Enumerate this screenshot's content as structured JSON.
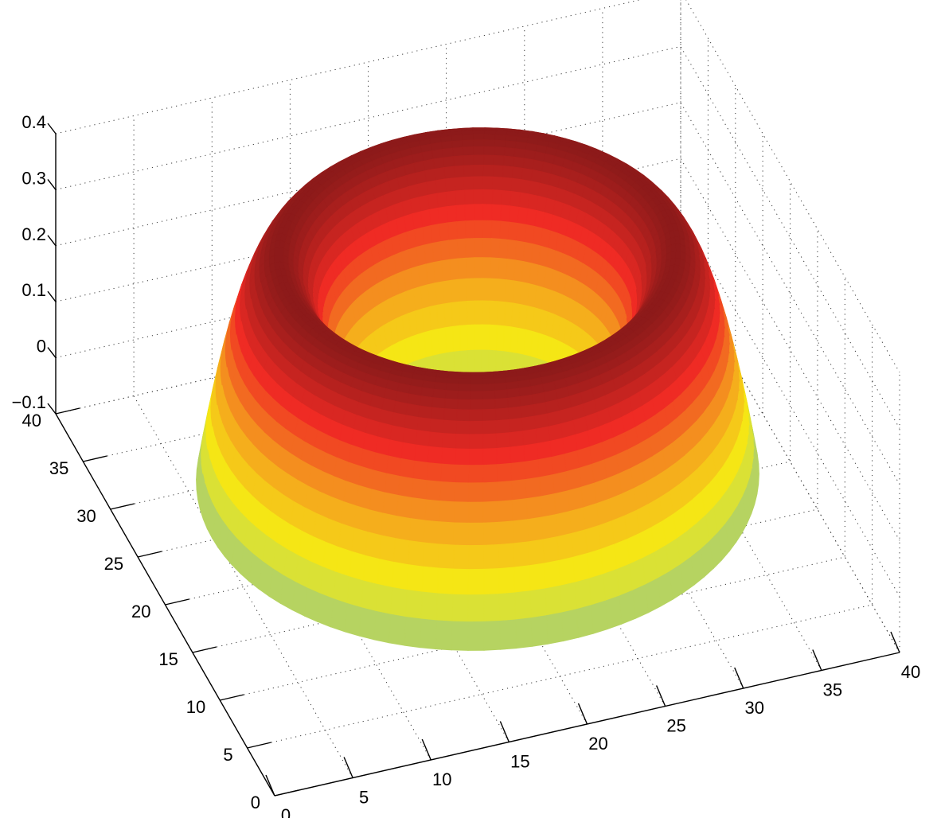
{
  "chart_data": {
    "type": "surface3d",
    "title": "",
    "xlabel": "",
    "ylabel": "",
    "zlabel": "",
    "xlim": [
      0,
      40
    ],
    "ylim": [
      0,
      40
    ],
    "zlim": [
      -0.1,
      0.4
    ],
    "x_ticks": [
      "0",
      "5",
      "10",
      "15",
      "20",
      "25",
      "30",
      "35",
      "40"
    ],
    "y_ticks": [
      "0",
      "5",
      "10",
      "15",
      "20",
      "25",
      "30",
      "35",
      "40"
    ],
    "z_ticks": [
      "−0.1",
      "0",
      "0.1",
      "0.2",
      "0.3",
      "0.4"
    ],
    "grid": true,
    "colormap": [
      "#a3cc78",
      "#f5ec14",
      "#f5a21e",
      "#ef2b24",
      "#8c1a1a"
    ],
    "surface": {
      "shape": "annular ridge (torus-like)",
      "center": [
        20,
        20
      ],
      "inner_radius": 7,
      "outer_radius": 17,
      "peak_radius": 12,
      "peak_value": 0.4,
      "edge_value": 0
    }
  }
}
